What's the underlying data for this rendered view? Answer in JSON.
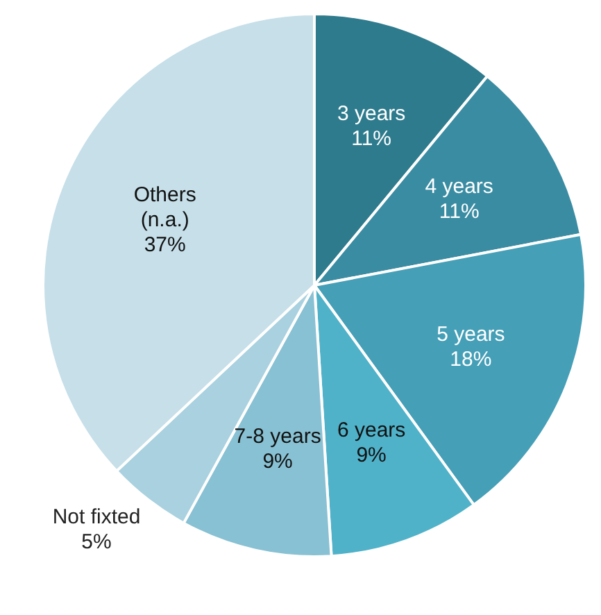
{
  "chart_data": {
    "type": "pie",
    "categories": [
      "3 years",
      "4 years",
      "5 years",
      "6 years",
      "7-8 years",
      "Not fixted",
      "Others (n.a.)"
    ],
    "values": [
      11,
      11,
      18,
      9,
      9,
      5,
      37
    ],
    "colors": [
      "#2e7b8d",
      "#3a8ca2",
      "#459fb7",
      "#4fb2c9",
      "#88c1d3",
      "#a9d1df",
      "#c6dfe9"
    ],
    "value_labels": [
      "11%",
      "11%",
      "18%",
      "9%",
      "9%",
      "5%",
      "37%"
    ],
    "legend": false
  }
}
